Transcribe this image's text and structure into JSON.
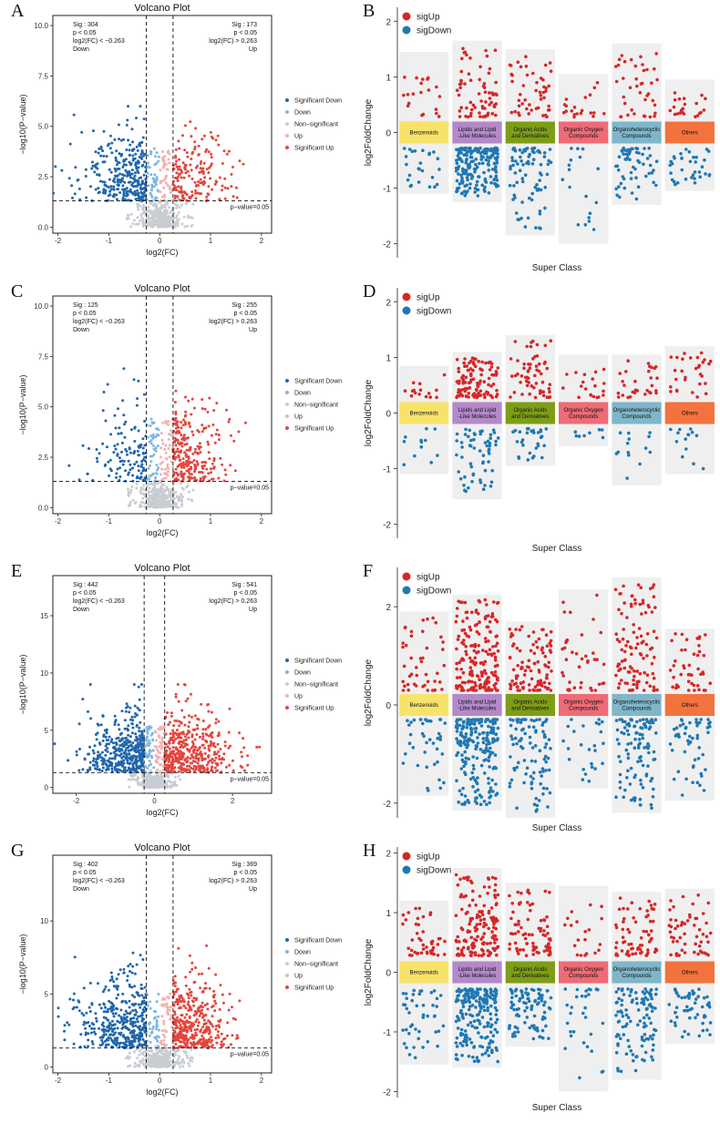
{
  "figure": {
    "panel_labels": [
      "A",
      "B",
      "C",
      "D",
      "E",
      "F",
      "G",
      "H"
    ]
  },
  "colors": {
    "sig_down": "#2166ac",
    "down": "#7fb7e6",
    "non_significant": "#c8cdd3",
    "up": "#f4b1ad",
    "sig_up": "#e2473f",
    "sigUp": "#d62728",
    "sigDown": "#1f78b4",
    "cat_benzenoids": "#f7e36a",
    "cat_lipids": "#b389c9",
    "cat_organic_acids": "#7e9d17",
    "cat_organic_oxygen": "#ee6b77",
    "cat_organoheterocyclic": "#7fb6c9",
    "cat_others": "#f2733d",
    "band": "#efefef"
  },
  "chart_data": [
    {
      "panel": "A",
      "type": "scatter",
      "title": "Volcano Plot",
      "xlabel": "log2(FC)",
      "ylabel": "−log10(P−value)",
      "xlim": [
        -2.1,
        2.2
      ],
      "ylim": [
        -0.3,
        10.5
      ],
      "xticks": [
        -2,
        -1,
        0,
        1,
        2
      ],
      "yticks": [
        0.0,
        2.5,
        5.0,
        7.5,
        10.0
      ],
      "ytick_labels": [
        "0.0",
        "2.5",
        "5.0",
        "7.5",
        "10.0"
      ],
      "fc_threshold": 0.263,
      "p_line": 1.3,
      "p_label": "p−value=0.05",
      "down_annotation": [
        "Sig : 304",
        "p < 0.05",
        "log2(FC) < −0.263",
        "Down"
      ],
      "up_annotation": [
        "Sig : 173",
        "p < 0.05",
        "log2(FC) > 0.263",
        "Up"
      ],
      "legend": [
        "Significant Down",
        "Down",
        "Non−significant",
        "Up",
        "Significant Up"
      ],
      "n_sig_down": 304,
      "n_sig_up": 173,
      "max_y": 6.0,
      "spread_down": 1.9,
      "spread_up": 1.6
    },
    {
      "panel": "B",
      "type": "scatter",
      "chart": "fold_change_by_class",
      "xlabel": "Super Class",
      "ylabel": "log2FoldChange",
      "ylim": [
        -2.25,
        2.25
      ],
      "yticks": [
        -2,
        -1,
        0,
        1,
        2
      ],
      "legend": [
        "sigUp",
        "sigDown"
      ],
      "categories": [
        "Benzenoids",
        "Lipids and Lipid\n-Like Molecules",
        "Organic Acids\nand Derivatives",
        "Organic Oxygen\nCompounds",
        "Organoheterocyclic\nCompounds",
        "Others"
      ],
      "n_up": [
        20,
        70,
        50,
        20,
        40,
        22
      ],
      "n_down": [
        25,
        190,
        80,
        18,
        60,
        35
      ],
      "max_up": [
        1.35,
        1.55,
        1.4,
        0.95,
        1.5,
        0.85
      ],
      "min_down": [
        -1.0,
        -1.15,
        -1.75,
        -1.9,
        -1.2,
        -0.95
      ]
    },
    {
      "panel": "C",
      "type": "scatter",
      "title": "Volcano Plot",
      "xlabel": "log2(FC)",
      "ylabel": "−log10(P−value)",
      "xlim": [
        -2.1,
        2.2
      ],
      "ylim": [
        -0.3,
        10.5
      ],
      "xticks": [
        -2,
        -1,
        0,
        1,
        2
      ],
      "yticks": [
        0.0,
        2.5,
        5.0,
        7.5,
        10.0
      ],
      "ytick_labels": [
        "0.0",
        "2.5",
        "5.0",
        "7.5",
        "10.0"
      ],
      "fc_threshold": 0.263,
      "p_line": 1.3,
      "p_label": "p−value=0.05",
      "down_annotation": [
        "Sig : 125",
        "p < 0.05",
        "log2(FC) < −0.263",
        "Down"
      ],
      "up_annotation": [
        "Sig : 255",
        "p < 0.05",
        "log2(FC) > 0.263",
        "Up"
      ],
      "legend": [
        "Significant Down",
        "Down",
        "Non−significant",
        "Up",
        "Significant Up"
      ],
      "n_sig_down": 125,
      "n_sig_up": 255,
      "max_y": 6.9,
      "spread_down": 1.55,
      "spread_up": 1.3
    },
    {
      "panel": "D",
      "type": "scatter",
      "chart": "fold_change_by_class",
      "xlabel": "Super Class",
      "ylabel": "log2FoldChange",
      "ylim": [
        -2.25,
        2.25
      ],
      "yticks": [
        -2,
        -1,
        0,
        1,
        2
      ],
      "legend": [
        "sigUp",
        "sigDown"
      ],
      "categories": [
        "Benzenoids",
        "Lipids and Lipid\n-Like Molecules",
        "Organic Acids\nand Derivatives",
        "Organic Oxygen\nCompounds",
        "Organoheterocyclic\nCompounds",
        "Others"
      ],
      "n_up": [
        15,
        110,
        60,
        20,
        30,
        30
      ],
      "n_down": [
        12,
        60,
        30,
        8,
        14,
        14
      ],
      "max_up": [
        0.75,
        1.0,
        1.3,
        0.95,
        0.95,
        1.1
      ],
      "min_down": [
        -1.0,
        -1.45,
        -0.85,
        -0.5,
        -1.2,
        -1.0
      ]
    },
    {
      "panel": "E",
      "type": "scatter",
      "title": "Volcano Plot",
      "xlabel": "log2(FC)",
      "ylabel": "−log10(P−value)",
      "xlim": [
        -2.6,
        3.0
      ],
      "ylim": [
        -0.5,
        18.5
      ],
      "xticks": [
        -2,
        0,
        2
      ],
      "yticks": [
        0,
        5,
        10,
        15
      ],
      "ytick_labels": [
        "0",
        "5",
        "10",
        "15"
      ],
      "fc_threshold": 0.263,
      "p_line": 1.3,
      "p_label": "p−value=0.05",
      "down_annotation": [
        "Sig : 442",
        "p < 0.05",
        "log2(FC) < −0.263",
        "Down"
      ],
      "up_annotation": [
        "Sig : 541",
        "p < 0.05",
        "log2(FC) > 0.263",
        "Up"
      ],
      "legend": [
        "Significant Down",
        "Down",
        "Non−significant",
        "Up",
        "Significant Up"
      ],
      "n_sig_down": 442,
      "n_sig_up": 541,
      "max_y": 9.0,
      "spread_down": 2.1,
      "spread_up": 2.5
    },
    {
      "panel": "F",
      "type": "scatter",
      "chart": "fold_change_by_class",
      "xlabel": "Super Class",
      "ylabel": "log2FoldChange",
      "ylim": [
        -2.3,
        2.8
      ],
      "yticks": [
        -2,
        0,
        2
      ],
      "legend": [
        "sigUp",
        "sigDown"
      ],
      "categories": [
        "Benzenoids",
        "Lipids and Lipid\n-Like Molecules",
        "Organic Acids\nand Derivatives",
        "Organic Oxygen\nCompounds",
        "Organoheterocyclic\nCompounds",
        "Others"
      ],
      "n_up": [
        45,
        190,
        100,
        40,
        110,
        45
      ],
      "n_down": [
        40,
        210,
        95,
        25,
        110,
        55
      ],
      "max_up": [
        1.8,
        2.15,
        1.6,
        2.25,
        2.5,
        1.45
      ],
      "min_down": [
        -1.75,
        -2.05,
        -2.2,
        -1.6,
        -2.1,
        -1.85
      ]
    },
    {
      "panel": "G",
      "type": "scatter",
      "title": "Volcano Plot",
      "xlabel": "log2(FC)",
      "ylabel": "−log10(P−value)",
      "xlim": [
        -2.1,
        2.2
      ],
      "ylim": [
        -0.4,
        14.5
      ],
      "xticks": [
        -2,
        -1,
        0,
        1,
        2
      ],
      "yticks": [
        0,
        5,
        10
      ],
      "ytick_labels": [
        "0",
        "5",
        "10"
      ],
      "fc_threshold": 0.263,
      "p_line": 1.3,
      "p_label": "p−value=0.05",
      "down_annotation": [
        "Sig : 402",
        "p < 0.05",
        "log2(FC) < −0.263",
        "Down"
      ],
      "up_annotation": [
        "Sig : 369",
        "p < 0.05",
        "log2(FC) > 0.263",
        "Up"
      ],
      "legend": [
        "Significant Down",
        "Down",
        "Non−significant",
        "Up",
        "Significant Up"
      ],
      "n_sig_down": 402,
      "n_sig_up": 369,
      "max_y": 8.3,
      "spread_down": 1.9,
      "spread_up": 1.6
    },
    {
      "panel": "H",
      "type": "scatter",
      "chart": "fold_change_by_class",
      "xlabel": "Super Class",
      "ylabel": "log2FoldChange",
      "ylim": [
        -2.1,
        2.1
      ],
      "yticks": [
        -2,
        -1,
        0,
        1,
        2
      ],
      "legend": [
        "sigUp",
        "sigDown"
      ],
      "categories": [
        "Benzenoids",
        "Lipids and Lipid\n-Like Molecules",
        "Organic Acids\nand Derivatives",
        "Organic Oxygen\nCompounds",
        "Organoheterocyclic\nCompounds",
        "Others"
      ],
      "n_up": [
        45,
        150,
        80,
        20,
        70,
        55
      ],
      "n_down": [
        45,
        200,
        90,
        30,
        110,
        55
      ],
      "max_up": [
        1.1,
        1.65,
        1.4,
        1.35,
        1.25,
        1.3
      ],
      "min_down": [
        -1.45,
        -1.5,
        -1.15,
        -1.9,
        -1.7,
        -1.1
      ]
    }
  ]
}
